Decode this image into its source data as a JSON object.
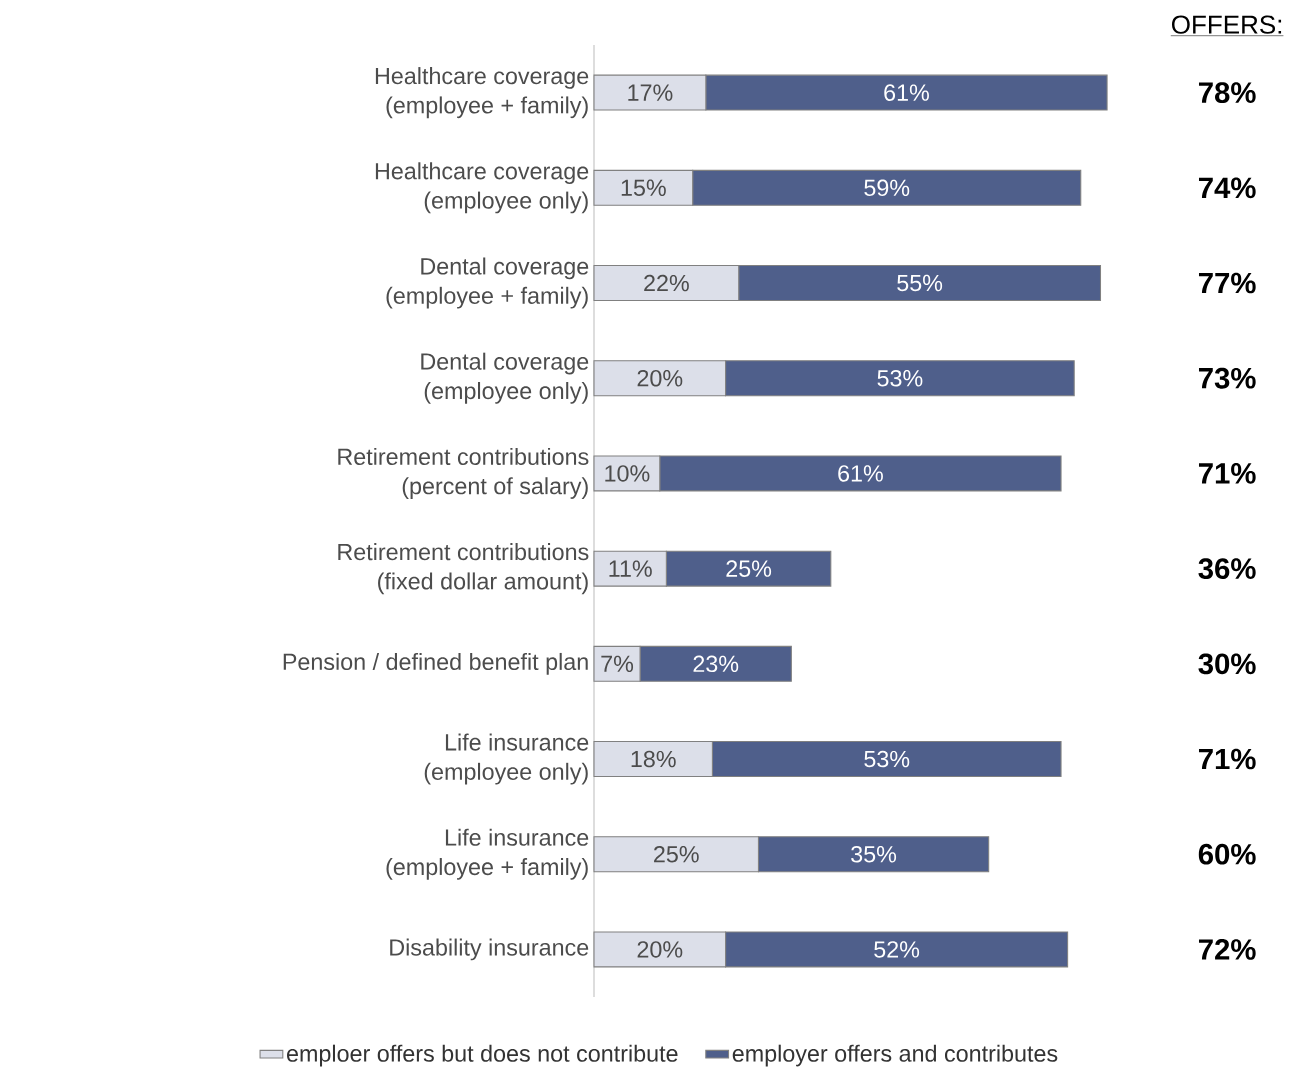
{
  "chart_data": {
    "type": "bar",
    "orientation": "horizontal",
    "stacked": true,
    "categories": [
      "Healthcare coverage\n(employee + family)",
      "Healthcare coverage\n(employee only)",
      "Dental coverage\n(employee + family)",
      "Dental coverage\n(employee only)",
      "Retirement contributions\n(percent of salary)",
      "Retirement contributions\n(fixed dollar amount)",
      "Pension / defined benefit plan",
      "Life insurance\n(employee only)",
      "Life insurance\n(employee + family)",
      "Disability insurance"
    ],
    "series": [
      {
        "name": "emploer offers but does not contribute",
        "color": "#dcdfe9",
        "values": [
          17,
          15,
          22,
          20,
          10,
          11,
          7,
          18,
          25,
          20
        ],
        "value_labels": [
          "17%",
          "15%",
          "22%",
          "20%",
          "10%",
          "11%",
          "7%",
          "18%",
          "25%",
          "20%"
        ]
      },
      {
        "name": "employer offers and contributes",
        "color": "#4f5f8b",
        "values": [
          61,
          59,
          55,
          53,
          61,
          25,
          23,
          53,
          35,
          52
        ],
        "value_labels": [
          "61%",
          "59%",
          "55%",
          "53%",
          "61%",
          "25%",
          "23%",
          "53%",
          "35%",
          "52%"
        ]
      }
    ],
    "annotations": [
      "OFFERS:",
      "78%",
      "74%",
      "77%",
      "73%",
      "71%",
      "36%",
      "30%",
      "71%",
      "60%",
      "72%"
    ],
    "legend": "bottom"
  }
}
